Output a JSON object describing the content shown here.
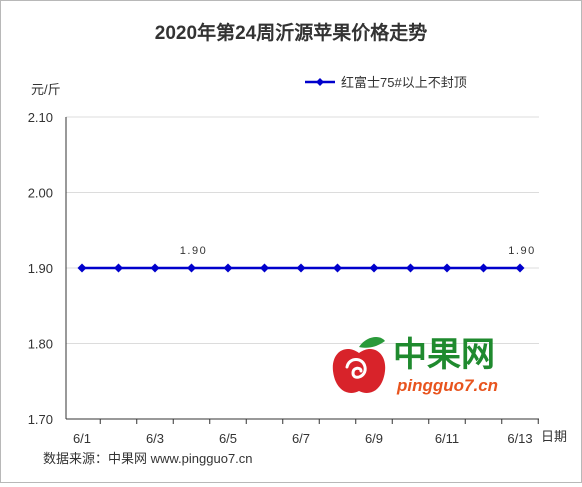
{
  "chart_data": {
    "type": "line",
    "title": "2020年第24周沂源苹果价格走势",
    "ylabel": "元/斤",
    "xlabel": "日期",
    "ylim": [
      1.7,
      2.1
    ],
    "yticks": [
      "2.10",
      "2.00",
      "1.90",
      "1.80",
      "1.70"
    ],
    "x": [
      "6/1",
      "6/2",
      "6/3",
      "6/4",
      "6/5",
      "6/6",
      "6/7",
      "6/8",
      "6/9",
      "6/10",
      "6/11",
      "6/12",
      "6/13"
    ],
    "x_tick_labels": [
      "6/1",
      "6/3",
      "6/5",
      "6/7",
      "6/9",
      "6/11",
      "6/13"
    ],
    "series": [
      {
        "name": "红富士75#以上不封顶",
        "values": [
          1.9,
          1.9,
          1.9,
          1.9,
          1.9,
          1.9,
          1.9,
          1.9,
          1.9,
          1.9,
          1.9,
          1.9,
          1.9
        ],
        "color": "#0000cc"
      }
    ],
    "data_labels": [
      {
        "index": 3,
        "text": "1.90"
      },
      {
        "index": 12,
        "text": "1.90"
      }
    ],
    "grid": true,
    "legend_position": "top-right"
  },
  "source_text": "数据来源：中果网 www.pingguo7.cn",
  "watermark": {
    "brand": "中果网",
    "url": "pingguo7.cn",
    "brand_color": "#1f8a2e",
    "url_color": "#e8541e",
    "apple_color": "#d8232a",
    "leaf_color": "#2a9a3a"
  }
}
